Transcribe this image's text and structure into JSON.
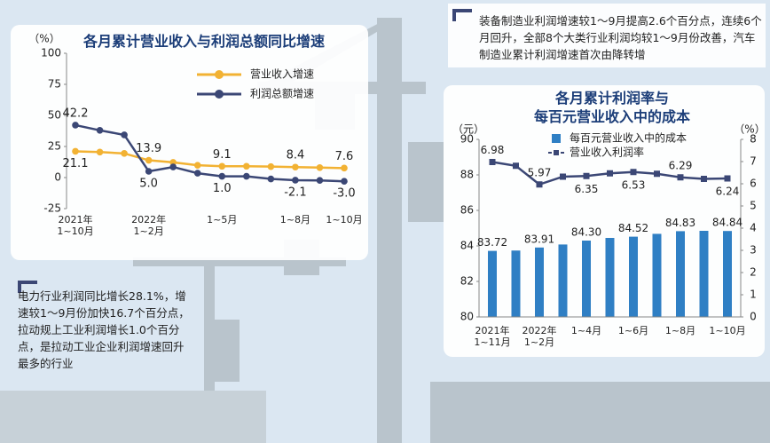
{
  "texts": {
    "top_right": "装备制造业利润增速较1～9月提高2.6个百分点，连续6个月回升，全部8个大类行业利润均较1～9月份改善，汽车制造业累计利润增速首次由降转增",
    "bottom_left": "电力行业利润同比增长28.1%，增速较1～9月份加快16.7个百分点，拉动规上工业利润增长1.0个百分点，是拉动工业企业利润增速回升最多的行业"
  },
  "chart_data": [
    {
      "type": "line",
      "title": "各月累计营业收入与利润总额同比增速",
      "y_unit": "（%）",
      "categories": [
        "2021年\n1~10月",
        null,
        null,
        "2022年\n1~2月",
        null,
        null,
        "1~5月",
        null,
        null,
        "1~8月",
        null,
        "1~10月"
      ],
      "series": [
        {
          "name": "营业收入增速",
          "color": "#f2b233",
          "values": [
            21.1,
            20.5,
            19.4,
            13.9,
            12.2,
            9.9,
            9.1,
            9.1,
            8.8,
            8.4,
            8.0,
            7.6
          ],
          "value_labels": [
            "21.1",
            null,
            null,
            "13.9",
            null,
            null,
            "9.1",
            null,
            null,
            "8.4",
            null,
            "7.6"
          ]
        },
        {
          "name": "利润总额增速",
          "color": "#3b4775",
          "values": [
            42.2,
            38.0,
            34.3,
            5.0,
            8.5,
            3.5,
            1.0,
            1.0,
            -1.1,
            -2.1,
            -2.3,
            -3.0
          ],
          "value_labels": [
            "42.2",
            null,
            null,
            "5.0",
            null,
            null,
            "1.0",
            null,
            null,
            "-2.1",
            null,
            "-3.0"
          ]
        }
      ],
      "ylim": [
        -25,
        100
      ],
      "yticks": [
        -25,
        0,
        25,
        50,
        75,
        100
      ],
      "grid": false
    },
    {
      "type": "combo",
      "title": "各月累计利润率与\n每百元营业收入中的成本",
      "y_unit": "（元）",
      "y2_unit": "（%）",
      "categories": [
        "2021年\n1~11月",
        null,
        "2022年\n1~2月",
        null,
        "1~4月",
        null,
        "1~6月",
        null,
        "1~8月",
        null,
        "1~10月"
      ],
      "series": [
        {
          "name": "每百元营业收入中的成本",
          "type": "bar",
          "color": "#2f7fc4",
          "values": [
            83.72,
            83.74,
            83.91,
            84.08,
            84.3,
            84.45,
            84.52,
            84.68,
            84.83,
            84.85,
            84.84
          ],
          "value_labels": [
            "83.72",
            null,
            "83.91",
            null,
            "84.30",
            null,
            "84.52",
            null,
            "84.83",
            null,
            "84.84"
          ]
        },
        {
          "name": "营业收入利润率",
          "type": "line",
          "axis": "y2",
          "color": "#3b4775",
          "values": [
            6.98,
            6.81,
            5.97,
            6.32,
            6.35,
            6.47,
            6.53,
            6.45,
            6.29,
            6.22,
            6.24
          ],
          "value_labels": [
            "6.98",
            null,
            "5.97",
            null,
            "6.35",
            null,
            "6.53",
            null,
            "6.29",
            null,
            "6.24"
          ]
        }
      ],
      "ylim": [
        80,
        90
      ],
      "yticks": [
        80,
        82,
        84,
        86,
        88,
        90
      ],
      "y2lim": [
        0,
        8
      ],
      "y2ticks": [
        0,
        1,
        2,
        3,
        4,
        5,
        6,
        7,
        8
      ],
      "grid": false
    }
  ]
}
